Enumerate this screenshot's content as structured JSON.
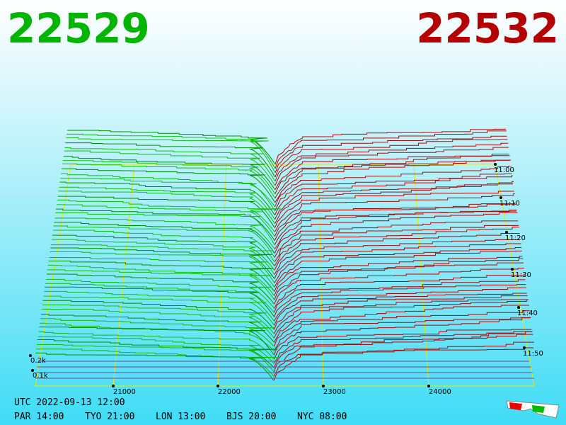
{
  "header": {
    "bid": "22529",
    "ask": "22532"
  },
  "price_axis": [
    "21000",
    "22000",
    "23000",
    "24000"
  ],
  "time_axis": [
    "11:00",
    "11:10",
    "11:20",
    "11:30",
    "11:40",
    "11:50"
  ],
  "depth_axis": [
    "0.2k",
    "0.1k"
  ],
  "footer": {
    "utc": "UTC 2022-09-13 12:00",
    "clocks": [
      "PAR 14:00",
      "TYO 21:00",
      "LON 13:00",
      "BJS 20:00",
      "NYC 08:00"
    ]
  }
}
